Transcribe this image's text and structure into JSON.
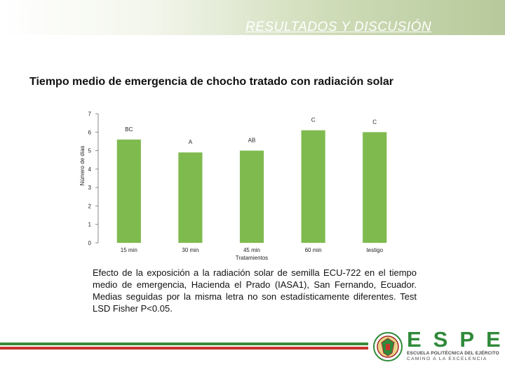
{
  "header": {
    "title": "RESULTADOS Y DISCUSIÓN"
  },
  "slide": {
    "title": "Tiempo medio de emergencia de chocho tratado con radiación solar"
  },
  "chart_data": {
    "type": "bar",
    "categories": [
      "15 min",
      "30 min",
      "45 min",
      "60 min",
      "testigo"
    ],
    "values": [
      5.6,
      4.9,
      5.0,
      6.1,
      6.0
    ],
    "data_labels": [
      "BC",
      "A",
      "AB",
      "C",
      "C"
    ],
    "xlabel": "Tratamientos",
    "ylabel": "Número de días",
    "ylim": [
      0,
      7
    ],
    "yticks": [
      "0",
      "1",
      "2",
      "3",
      "4",
      "5",
      "6",
      "7"
    ],
    "bar_color": "#7fba4f",
    "grid": false
  },
  "caption": "Efecto de la exposición a la radiación solar de semilla ECU-722 en el tiempo medio de emergencia, Hacienda el Prado (IASA1), San Fernando, Ecuador. Medias seguidas por la misma letra no son estadísticamente diferentes. Test LSD Fisher P<0.05.",
  "logo": {
    "name": "ESPE",
    "subtitle": "ESCUELA POLITÉCNICA DEL EJÉRCITO",
    "motto": "CAMINO A LA EXCELENCIA"
  },
  "colors": {
    "footer_green": "#3a8a36",
    "footer_red": "#c8352b",
    "brand_green": "#2f8a3a"
  }
}
